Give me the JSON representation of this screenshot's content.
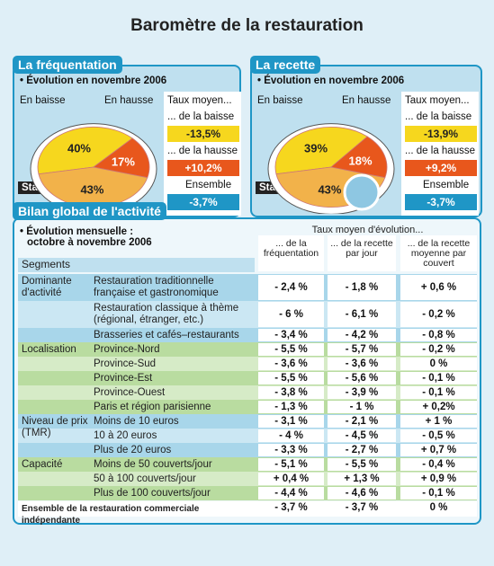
{
  "title": "Baromètre de la restauration",
  "panels": [
    {
      "title": "La fréquentation",
      "subtitle": "• Évolution en novembre 2006",
      "pie": {
        "type": "pie",
        "values": [
          40,
          17,
          43
        ],
        "value_labels": [
          "40%",
          "17%",
          "43%"
        ],
        "labels": [
          "En baisse",
          "En hausse",
          "Stable"
        ],
        "colors": [
          "#f6d71e",
          "#e8571c",
          "#f2b24a"
        ]
      },
      "rates": {
        "heading": "Taux moyen...",
        "items": [
          {
            "label": "... de la baisse",
            "value": "-13,5%"
          },
          {
            "label": "... de la hausse",
            "value": "+10,2%"
          },
          {
            "label": "Ensemble",
            "value": "-3,7%"
          }
        ]
      }
    },
    {
      "title": "La recette",
      "subtitle": "• Évolution en novembre 2006",
      "pie": {
        "type": "pie",
        "values": [
          39,
          18,
          43
        ],
        "value_labels": [
          "39%",
          "18%",
          "43%"
        ],
        "labels": [
          "En baisse",
          "En hausse",
          "Stable"
        ],
        "colors": [
          "#f6d71e",
          "#e8571c",
          "#f2b24a"
        ]
      },
      "rates": {
        "heading": "Taux moyen...",
        "items": [
          {
            "label": "... de la baisse",
            "value": "-13,9%"
          },
          {
            "label": "... de la hausse",
            "value": "+9,2%"
          },
          {
            "label": "Ensemble",
            "value": "-3,7%"
          }
        ]
      }
    }
  ],
  "bilan": {
    "title": "Bilan global de l'activité",
    "subtitle": [
      "• Évolution mensuelle :",
      "octobre à novembre 2006"
    ],
    "table": {
      "super_header": "Taux moyen d'évolution...",
      "columns": [
        "Segments",
        "... de la fréquentation",
        "... de la recette par jour",
        "... de la recette moyenne par couvert"
      ],
      "groups": [
        {
          "name": "Dominante d'activité",
          "rows": [
            [
              "Restauration traditionnelle française et gastronomique",
              "- 2,4 %",
              "- 1,8 %",
              "+ 0,6 %"
            ],
            [
              "Restauration classique à thème (régional, étranger, etc.)",
              "- 6 %",
              "- 6,1 %",
              "- 0,2 %"
            ],
            [
              "Brasseries et cafés–restaurants",
              "- 3,4 %",
              "- 4,2 %",
              "- 0,8 %"
            ]
          ]
        },
        {
          "name": "Localisation",
          "rows": [
            [
              "Province-Nord",
              "- 5,5 %",
              "- 5,7 %",
              "- 0,2 %"
            ],
            [
              "Province-Sud",
              "- 3,6 %",
              "- 3,6 %",
              "0 %"
            ],
            [
              "Province-Est",
              "- 5,5 %",
              "- 5,6 %",
              "- 0,1 %"
            ],
            [
              "Province-Ouest",
              "- 3,8 %",
              "- 3,9 %",
              "- 0,1 %"
            ],
            [
              "Paris et région parisienne",
              "- 1,3 %",
              "- 1 %",
              "+ 0,2%"
            ]
          ]
        },
        {
          "name": "Niveau de prix (TMR)",
          "rows": [
            [
              "Moins de 10 euros",
              "- 3,1 %",
              "- 2,1 %",
              "+ 1 %"
            ],
            [
              "10 à 20 euros",
              "- 4 %",
              "- 4,5 %",
              "- 0,5 %"
            ],
            [
              "Plus de 20 euros",
              "- 3,3 %",
              "- 2,7 %",
              "+ 0,7 %"
            ]
          ]
        },
        {
          "name": "Capacité",
          "rows": [
            [
              "Moins de 50 couverts/jour",
              "- 5,1 %",
              "- 5,5 %",
              "- 0,4 %"
            ],
            [
              "50 à 100 couverts/jour",
              "+ 0,4 %",
              "+ 1,3 %",
              "+ 0,9 %"
            ],
            [
              "Plus de 100 couverts/jour",
              "- 4,4 %",
              "- 4,6 %",
              "- 0,1 %"
            ]
          ]
        }
      ],
      "total": [
        "Ensemble de la restauration commerciale indépendante",
        "- 3,7 %",
        "- 3,7 %",
        "0 %"
      ]
    }
  }
}
